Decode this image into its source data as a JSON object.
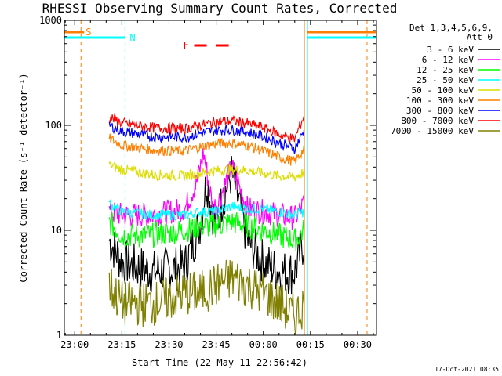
{
  "chart_data": {
    "type": "line",
    "title": "RHESSI Observing Summary Count Rates, Corrected",
    "xlabel": "Start Time (22-May-11 22:56:42)",
    "ylabel": "Corrected Count Rate (s⁻¹ detector⁻¹)",
    "y_scale": "log",
    "ylim": [
      1,
      1000
    ],
    "xlim": [
      "22:56:42",
      "00:36:00"
    ],
    "x_tick_labels": [
      "23:00",
      "23:15",
      "23:30",
      "23:45",
      "00:00",
      "00:15",
      "00:30"
    ],
    "y_tick_labels": [
      "1",
      "10",
      "100",
      "1000"
    ],
    "legend_placement": "right",
    "legend_header": [
      "Det 1,3,4,5,6,9,",
      "Att 0"
    ],
    "series": [
      {
        "name": "3 - 6 keV",
        "color": "#000000",
        "x": [
          "23:11",
          "23:15",
          "23:25",
          "23:35",
          "23:40",
          "23:42",
          "23:45",
          "23:47",
          "23:50",
          "23:55",
          "00:00",
          "00:05",
          "00:10",
          "00:13"
        ],
        "values": [
          8,
          5,
          4,
          4.5,
          12,
          30,
          10,
          20,
          35,
          8,
          5,
          4,
          4,
          8
        ]
      },
      {
        "name": "6 - 12 keV",
        "color": "#ff00ff",
        "x": [
          "23:11",
          "23:15",
          "23:25",
          "23:35",
          "23:39",
          "23:41",
          "23:44",
          "23:46",
          "23:50",
          "23:55",
          "00:00",
          "00:05",
          "00:10",
          "00:13"
        ],
        "values": [
          15,
          14,
          14,
          16,
          30,
          55,
          16,
          20,
          40,
          16,
          15,
          14,
          13,
          18
        ]
      },
      {
        "name": "12 - 25 keV",
        "color": "#00ff00",
        "x": [
          "23:11",
          "23:15",
          "23:25",
          "23:35",
          "23:40",
          "23:45",
          "23:50",
          "23:55",
          "00:00",
          "00:05",
          "00:10",
          "00:13"
        ],
        "values": [
          12,
          9,
          9,
          10,
          11,
          11,
          12,
          11,
          10,
          9,
          8,
          10
        ]
      },
      {
        "name": "25 - 50 keV",
        "color": "#00ffff",
        "x": [
          "23:11",
          "23:15",
          "23:25",
          "23:35",
          "23:40",
          "23:45",
          "23:50",
          "23:55",
          "00:00",
          "00:05",
          "00:10",
          "00:13"
        ],
        "values": [
          18,
          15,
          14,
          14,
          15,
          15,
          17,
          16,
          16,
          15,
          14,
          15
        ]
      },
      {
        "name": "50 - 100 keV",
        "color": "#dddd00",
        "x": [
          "23:11",
          "23:15",
          "23:25",
          "23:35",
          "23:40",
          "23:45",
          "23:50",
          "23:55",
          "00:00",
          "00:05",
          "00:10",
          "00:13"
        ],
        "values": [
          42,
          38,
          34,
          33,
          35,
          37,
          38,
          37,
          35,
          33,
          32,
          36
        ]
      },
      {
        "name": "100 - 300 keV",
        "color": "#ff8000",
        "x": [
          "23:11",
          "23:15",
          "23:25",
          "23:35",
          "23:40",
          "23:45",
          "23:50",
          "23:55",
          "00:00",
          "00:05",
          "00:10",
          "00:13"
        ],
        "values": [
          75,
          65,
          58,
          57,
          62,
          67,
          68,
          64,
          57,
          50,
          45,
          60
        ]
      },
      {
        "name": "300 - 800 keV",
        "color": "#0000ff",
        "x": [
          "23:11",
          "23:15",
          "23:25",
          "23:35",
          "23:40",
          "23:45",
          "23:50",
          "23:55",
          "00:00",
          "00:05",
          "00:10",
          "00:13"
        ],
        "values": [
          100,
          88,
          78,
          77,
          84,
          90,
          91,
          86,
          78,
          68,
          60,
          90
        ]
      },
      {
        "name": "800 - 7000 keV",
        "color": "#ff0000",
        "x": [
          "23:11",
          "23:15",
          "23:25",
          "23:35",
          "23:40",
          "23:45",
          "23:50",
          "23:55",
          "00:00",
          "00:05",
          "00:10",
          "00:13"
        ],
        "values": [
          120,
          105,
          95,
          93,
          100,
          108,
          110,
          104,
          95,
          82,
          74,
          125
        ]
      },
      {
        "name": "7000 - 15000 keV",
        "color": "#808000",
        "x": [
          "23:11",
          "23:15",
          "23:25",
          "23:35",
          "23:40",
          "23:45",
          "23:50",
          "23:55",
          "00:00",
          "00:05",
          "00:10",
          "00:13"
        ],
        "values": [
          3,
          2,
          2,
          2.5,
          2.5,
          3,
          3.5,
          3,
          2.5,
          2,
          1.5,
          2
        ]
      }
    ],
    "annotations": [
      {
        "label": "S",
        "color": "#ff8000",
        "x_line": "23:02",
        "bar_to": "23:03"
      },
      {
        "label": "N",
        "color": "#00ffff",
        "x_line": "23:16",
        "bar_to": "23:16"
      },
      {
        "label": "F",
        "color": "#ff0000",
        "segments": [
          [
            "23:38",
            "23:42"
          ],
          [
            "23:45",
            "23:49"
          ]
        ]
      },
      {
        "color": "#ff8000",
        "x_line": "00:13"
      },
      {
        "color": "#00ffff",
        "x_line": "00:14"
      },
      {
        "color": "#ff8000",
        "x_line": "00:33"
      }
    ]
  },
  "footer": {
    "timestamp": "17-Oct-2021 08:35"
  }
}
